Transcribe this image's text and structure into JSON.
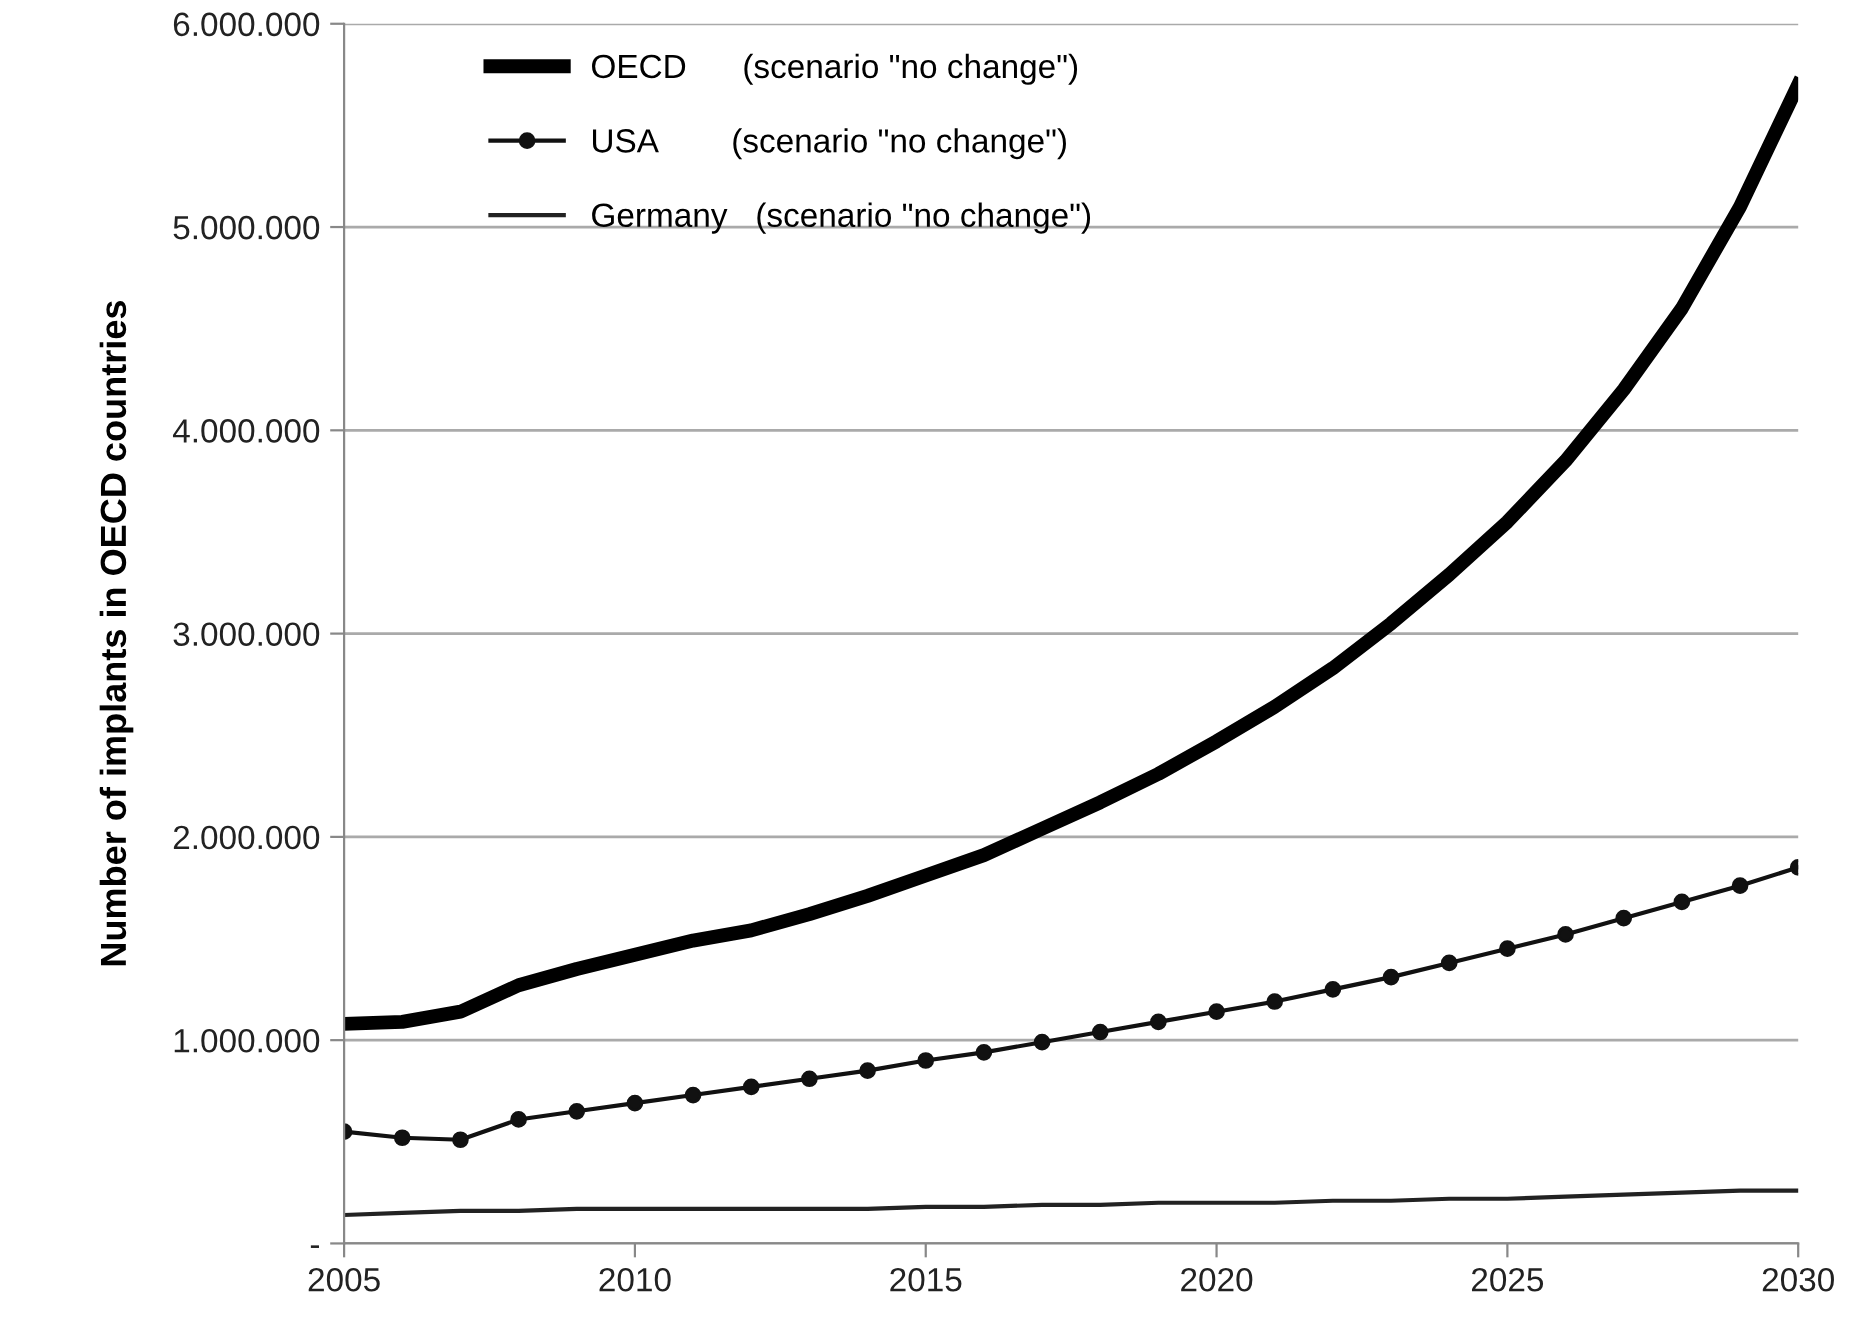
{
  "chart_data": {
    "type": "line",
    "ylabel": "Number of implants in OECD countries",
    "x": [
      2005,
      2006,
      2007,
      2008,
      2009,
      2010,
      2011,
      2012,
      2013,
      2014,
      2015,
      2016,
      2017,
      2018,
      2019,
      2020,
      2021,
      2022,
      2023,
      2024,
      2025,
      2026,
      2027,
      2028,
      2029,
      2030
    ],
    "series": [
      {
        "name": "OECD      (scenario \"no change\")",
        "color": "#000000",
        "marker": "none",
        "values": [
          1080000,
          1090000,
          1140000,
          1270000,
          1350000,
          1420000,
          1490000,
          1540000,
          1620000,
          1710000,
          1810000,
          1910000,
          2040000,
          2170000,
          2310000,
          2470000,
          2640000,
          2830000,
          3050000,
          3290000,
          3550000,
          3850000,
          4200000,
          4600000,
          5100000,
          5700000
        ]
      },
      {
        "name": "USA        (scenario \"no change\")",
        "color": "#111111",
        "marker": "circle",
        "values": [
          550000,
          520000,
          510000,
          610000,
          650000,
          690000,
          730000,
          770000,
          810000,
          850000,
          900000,
          940000,
          990000,
          1040000,
          1090000,
          1140000,
          1190000,
          1250000,
          1310000,
          1380000,
          1450000,
          1520000,
          1600000,
          1680000,
          1760000,
          1850000
        ]
      },
      {
        "name": "Germany   (scenario \"no change\")",
        "color": "#222222",
        "marker": "none",
        "values": [
          140000,
          150000,
          160000,
          160000,
          170000,
          170000,
          170000,
          170000,
          170000,
          170000,
          180000,
          180000,
          190000,
          190000,
          200000,
          200000,
          200000,
          210000,
          210000,
          220000,
          220000,
          230000,
          240000,
          250000,
          260000,
          260000
        ]
      }
    ],
    "xlim": [
      2005,
      2030
    ],
    "xticks": [
      2005,
      2010,
      2015,
      2020,
      2025,
      2030
    ],
    "ylim": [
      0,
      6000000
    ],
    "yticks": [
      {
        "value": 0,
        "label": "-"
      },
      {
        "value": 1000000,
        "label": "1.000.000"
      },
      {
        "value": 2000000,
        "label": "2.000.000"
      },
      {
        "value": 3000000,
        "label": "3.000.000"
      },
      {
        "value": 4000000,
        "label": "4.000.000"
      },
      {
        "value": 5000000,
        "label": "5.000.000"
      },
      {
        "value": 6000000,
        "label": "6.000.000"
      }
    ],
    "grid": "y",
    "legend": "top left",
    "line_style": "solid"
  }
}
